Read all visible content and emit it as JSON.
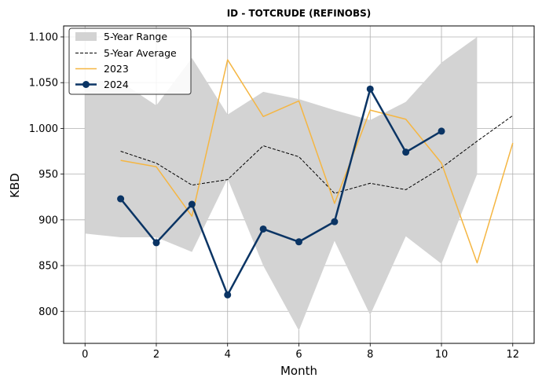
{
  "chart_data": {
    "type": "line",
    "title": "ID - TOTCRUDE (REFINOBS)",
    "xlabel": "Month",
    "ylabel": "KBD",
    "xlim": [
      -0.6,
      12.6
    ],
    "ylim": [
      765,
      1112
    ],
    "xticks": [
      "0",
      "2",
      "4",
      "6",
      "8",
      "10",
      "12"
    ],
    "yticks": [
      "800",
      "850",
      "900",
      "950",
      "1.000",
      "1.050",
      "1.100"
    ],
    "grid": true,
    "legend_position": "top-left",
    "colors": {
      "range": "#d3d3d3",
      "average": "#000000",
      "y2023": "#f5b642",
      "y2024": "#0a3464"
    },
    "range": {
      "name": "5-Year Range",
      "x": [
        0,
        1,
        2,
        3,
        4,
        5,
        6,
        7,
        8,
        9,
        10,
        11
      ],
      "lower": [
        885,
        881,
        881,
        865,
        945,
        850,
        779,
        877,
        796,
        882,
        852,
        950
      ],
      "upper": [
        1053,
        1051,
        1025,
        1077,
        1015,
        1040,
        1032,
        1020,
        1009,
        1029,
        1072,
        1100
      ]
    },
    "series": [
      {
        "name": "5-Year Average",
        "x": [
          1,
          2,
          3,
          4,
          5,
          6,
          7,
          8,
          9,
          10,
          11,
          12
        ],
        "values": [
          975,
          962,
          938,
          944,
          981,
          969,
          929,
          940,
          933,
          957,
          986,
          1014
        ]
      },
      {
        "name": "2023",
        "x": [
          1,
          2,
          3,
          4,
          5,
          6,
          7,
          8,
          9,
          10,
          11,
          12
        ],
        "values": [
          965,
          958,
          904,
          1075,
          1013,
          1030,
          918,
          1020,
          1010,
          962,
          853,
          984
        ]
      },
      {
        "name": "2024",
        "x": [
          1,
          2,
          3,
          4,
          5,
          6,
          7,
          8,
          9,
          10
        ],
        "values": [
          923,
          875,
          917,
          818,
          890,
          876,
          898,
          1043,
          974,
          997
        ]
      }
    ]
  }
}
